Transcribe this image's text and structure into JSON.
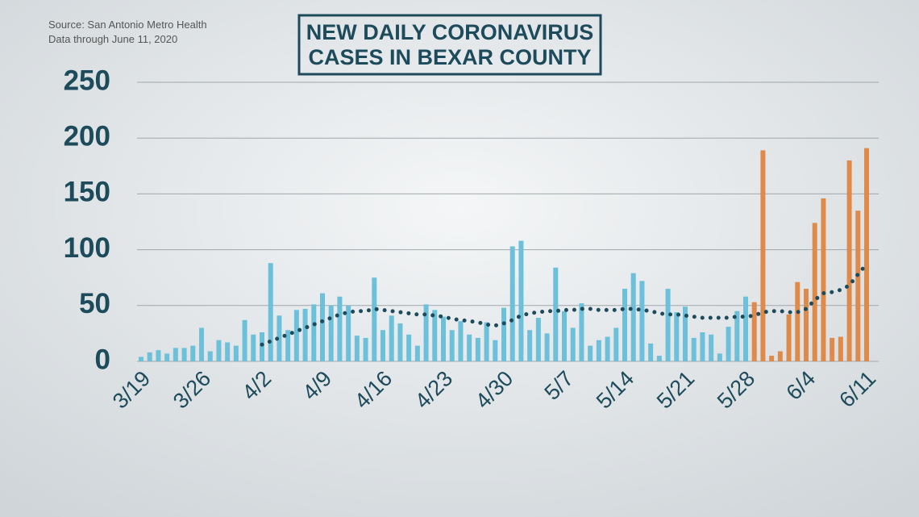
{
  "chart_data": {
    "type": "bar",
    "title": [
      "NEW DAILY CORONAVIRUS",
      "CASES IN BEXAR COUNTY"
    ],
    "source": "Source: San Antonio Metro Health",
    "note": "Data through June 11, 2020",
    "categories": [
      "3/19",
      null,
      null,
      null,
      null,
      null,
      null,
      "3/26",
      null,
      null,
      null,
      null,
      null,
      null,
      "4/2",
      null,
      null,
      null,
      null,
      null,
      null,
      "4/9",
      null,
      null,
      null,
      null,
      null,
      null,
      "4/16",
      null,
      null,
      null,
      null,
      null,
      null,
      "4/23",
      null,
      null,
      null,
      null,
      null,
      null,
      "4/30",
      null,
      null,
      null,
      null,
      null,
      null,
      "5/7",
      null,
      null,
      null,
      null,
      null,
      null,
      "5/14",
      null,
      null,
      null,
      null,
      null,
      null,
      "5/21",
      null,
      null,
      null,
      null,
      null,
      null,
      "5/28",
      null,
      null,
      null,
      null,
      null,
      null,
      "6/4",
      null,
      null,
      null,
      null,
      null,
      null,
      "6/11"
    ],
    "series": [
      {
        "type": "bar",
        "color": "#6cc0da",
        "values": [
          4,
          8,
          10,
          7,
          12,
          12,
          14,
          30,
          9,
          19,
          17,
          14,
          37,
          24,
          26,
          88,
          41,
          28,
          46,
          47,
          51,
          61,
          50,
          58,
          50,
          23,
          21,
          75,
          28,
          41,
          34,
          24,
          14,
          51,
          46,
          40,
          28,
          36,
          24,
          21,
          35,
          19,
          48,
          103,
          108,
          28,
          39,
          25,
          84,
          45,
          30,
          52,
          14,
          19,
          22,
          30,
          65,
          79,
          72,
          16,
          5,
          65,
          44,
          49,
          21,
          26,
          24,
          7,
          31,
          45,
          58,
          null,
          null,
          null,
          null,
          null,
          null,
          null,
          null,
          null,
          null,
          null,
          null,
          null,
          null
        ]
      },
      {
        "type": "bar",
        "color": "#e08a4a",
        "values": [
          null,
          null,
          null,
          null,
          null,
          null,
          null,
          null,
          null,
          null,
          null,
          null,
          null,
          null,
          null,
          null,
          null,
          null,
          null,
          null,
          null,
          null,
          null,
          null,
          null,
          null,
          null,
          null,
          null,
          null,
          null,
          null,
          null,
          null,
          null,
          null,
          null,
          null,
          null,
          null,
          null,
          null,
          null,
          null,
          null,
          null,
          null,
          null,
          null,
          null,
          null,
          null,
          null,
          null,
          null,
          null,
          null,
          null,
          null,
          null,
          null,
          null,
          null,
          null,
          null,
          null,
          null,
          null,
          null,
          null,
          null,
          53,
          189,
          5,
          9,
          42,
          71,
          65,
          124,
          146,
          21,
          22,
          180,
          135,
          191
        ]
      },
      {
        "type": "line",
        "color": "#1d4b5b",
        "values": [
          null,
          null,
          null,
          null,
          null,
          null,
          null,
          null,
          null,
          null,
          null,
          null,
          null,
          null,
          15,
          18,
          21,
          24,
          27,
          30,
          33,
          36,
          39,
          42,
          44,
          45,
          45,
          47,
          46,
          45,
          44,
          43,
          42,
          42,
          41,
          40,
          38,
          37,
          36,
          35,
          33,
          32,
          34,
          37,
          41,
          43,
          44,
          45,
          45,
          46,
          46,
          47,
          47,
          46,
          46,
          46,
          47,
          47,
          46,
          45,
          43,
          42,
          42,
          41,
          40,
          39,
          39,
          39,
          39,
          40,
          40,
          41,
          44,
          45,
          45,
          44,
          44,
          47,
          55,
          61,
          62,
          64,
          68,
          78,
          87
        ]
      }
    ],
    "ylim": [
      0,
      250
    ],
    "yticks": [
      0,
      50,
      100,
      150,
      200,
      250
    ],
    "grid": true
  }
}
